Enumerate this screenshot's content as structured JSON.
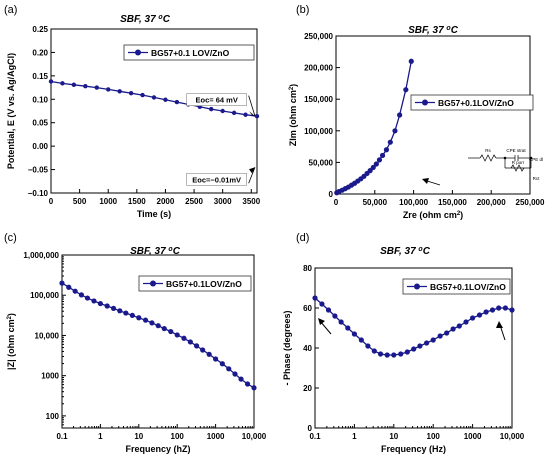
{
  "chart_data": [
    {
      "panel_label": "(a)",
      "type": "line",
      "title": "SBF, 37 oC",
      "xlabel": "Time (s)",
      "ylabel": "Potential, E (V vs. Ag/AgCl)",
      "xlim": [
        0,
        3600
      ],
      "ylim": [
        -0.1,
        0.25
      ],
      "x_scale": "linear",
      "y_scale": "linear",
      "x_ticks": [
        0,
        500,
        1000,
        1500,
        2000,
        2500,
        3000,
        3500
      ],
      "x_tick_labels": [
        "0",
        "500",
        "1000",
        "1500",
        "2000",
        "2500",
        "3000",
        "3500"
      ],
      "y_ticks": [
        -0.1,
        -0.05,
        0,
        0.05,
        0.1,
        0.15,
        0.2,
        0.25
      ],
      "y_tick_labels": [
        "−0.10",
        "−0.05",
        "0.00",
        "0.05",
        "0.10",
        "0.15",
        "0.20",
        "0.25"
      ],
      "legend": {
        "position": "top-right",
        "entries": [
          "BG57+0.1 LOV/ZnO"
        ]
      },
      "series": [
        {
          "name": "BG57+0.1 LOV/ZnO",
          "color": "#1a1a8c",
          "x": [
            0,
            200,
            400,
            600,
            800,
            1000,
            1200,
            1400,
            1600,
            1800,
            2000,
            2200,
            2400,
            2600,
            2800,
            3000,
            3200,
            3400,
            3600
          ],
          "y": [
            0.138,
            0.134,
            0.131,
            0.128,
            0.125,
            0.121,
            0.117,
            0.113,
            0.109,
            0.104,
            0.099,
            0.094,
            0.089,
            0.084,
            0.079,
            0.075,
            0.071,
            0.067,
            0.064
          ]
        }
      ],
      "annotations": [
        {
          "text": "Eoc= 64 mV",
          "color": "#1a1a8c",
          "x": 3000,
          "y": 0.095,
          "arrow_to": [
            3600,
            0.064
          ]
        },
        {
          "text": "Eoc=−0.01mV",
          "color": "#9b1111",
          "x": 3000,
          "y": -0.075,
          "arrow_to": [
            3600,
            -0.045
          ]
        }
      ]
    },
    {
      "panel_label": "(b)",
      "type": "scatter",
      "title": "SBF, 37 oC",
      "xlabel": "Zre (ohm cm2)",
      "ylabel": "ZIm (ohm cm2)",
      "xlim": [
        0,
        250000
      ],
      "ylim": [
        0,
        250000
      ],
      "x_scale": "linear",
      "y_scale": "linear",
      "x_ticks": [
        0,
        50000,
        100000,
        150000,
        200000,
        250000
      ],
      "x_tick_labels": [
        "0",
        "50,000",
        "100,000",
        "150,000",
        "200,000",
        "250,000"
      ],
      "y_ticks": [
        0,
        50000,
        100000,
        150000,
        200000,
        250000
      ],
      "y_tick_labels": [
        "0",
        "50,000",
        "100,000",
        "150,000",
        "200,000",
        "250,000"
      ],
      "legend": {
        "position": "middle-right",
        "entries": [
          "BG57+0.1LOV/ZnO"
        ]
      },
      "series": [
        {
          "name": "BG57+0.1LOV/ZnO",
          "color": "#1a1a8c",
          "x": [
            1000,
            4000,
            8000,
            12000,
            16000,
            20000,
            24000,
            28000,
            32000,
            36000,
            40000,
            44000,
            48000,
            52000,
            56000,
            60000,
            65000,
            70000,
            76000,
            82000,
            90000,
            97000
          ],
          "y": [
            2000,
            4000,
            6000,
            8500,
            11000,
            14000,
            17000,
            20500,
            24000,
            28000,
            32500,
            37000,
            42000,
            47500,
            54000,
            61000,
            70000,
            82000,
            100000,
            125000,
            165000,
            210000
          ]
        }
      ],
      "inset": {
        "type": "equivalent-circuit",
        "labels": [
          "Rs",
          "CPE strat",
          "R porr",
          "CPE dl",
          "Rct"
        ]
      }
    },
    {
      "panel_label": "(c)",
      "type": "line",
      "title": "SBF, 37 oC",
      "xlabel": "Frequency (hZ)",
      "ylabel": "|Z| (ohm cm2)",
      "xlim": [
        0.1,
        10000
      ],
      "ylim": [
        50,
        1000000
      ],
      "x_scale": "log",
      "y_scale": "log",
      "x_ticks": [
        0.1,
        1,
        10,
        100,
        1000,
        10000
      ],
      "x_tick_labels": [
        "0.1",
        "1",
        "10",
        "100",
        "1000",
        "10,000"
      ],
      "y_ticks": [
        100,
        1000,
        10000,
        100000,
        1000000
      ],
      "y_tick_labels": [
        "100",
        "1000",
        "10,000",
        "100,000",
        "1,000,000"
      ],
      "legend": {
        "position": "top-right",
        "entries": [
          "BG57+0.1LOV/ZnO"
        ]
      },
      "series": [
        {
          "name": "BG57+0.1LOV/ZnO",
          "color": "#1a1a8c",
          "x": [
            0.1,
            0.15,
            0.22,
            0.32,
            0.46,
            0.68,
            1,
            1.5,
            2.2,
            3.2,
            4.6,
            6.8,
            10,
            15,
            22,
            32,
            46,
            68,
            100,
            150,
            220,
            320,
            460,
            680,
            1000,
            1500,
            2200,
            3200,
            4600,
            6800,
            10000
          ],
          "y": [
            200000,
            158000,
            126000,
            102000,
            85000,
            72000,
            62000,
            54000,
            47000,
            41000,
            36000,
            31500,
            27500,
            24000,
            20500,
            17500,
            14800,
            12500,
            10300,
            8500,
            6900,
            5500,
            4350,
            3400,
            2600,
            1980,
            1480,
            1100,
            820,
            620,
            500
          ]
        }
      ]
    },
    {
      "panel_label": "(d)",
      "type": "line",
      "title": "SBF, 37 oC",
      "xlabel": "Frequency (Hz)",
      "ylabel": "- Phase (degrees)",
      "xlim": [
        0.1,
        10000
      ],
      "ylim": [
        0,
        80
      ],
      "x_scale": "log",
      "y_scale": "linear",
      "x_ticks": [
        0.1,
        1,
        10,
        100,
        1000,
        10000
      ],
      "x_tick_labels": [
        "0.1",
        "1",
        "10",
        "100",
        "1000",
        "10,000"
      ],
      "y_ticks": [
        0,
        20,
        40,
        60,
        80
      ],
      "y_tick_labels": [
        "0",
        "20",
        "40",
        "60",
        "80"
      ],
      "legend": {
        "position": "top-right",
        "entries": [
          "BG57+0.1LOV/ZnO"
        ]
      },
      "series": [
        {
          "name": "BG57+0.1LOV/ZnO",
          "color": "#1a1a8c",
          "x": [
            0.1,
            0.15,
            0.22,
            0.32,
            0.46,
            0.68,
            1,
            1.5,
            2.2,
            3.2,
            4.6,
            6.8,
            10,
            15,
            22,
            32,
            46,
            68,
            100,
            150,
            220,
            320,
            460,
            680,
            1000,
            1500,
            2200,
            3200,
            4600,
            6800,
            10000
          ],
          "y": [
            65,
            62,
            59,
            56,
            53,
            50,
            47,
            44,
            41,
            38.5,
            37,
            36.5,
            36.5,
            37,
            38,
            39.5,
            41,
            42.5,
            44,
            46,
            47.5,
            49.5,
            51,
            53,
            55,
            56.5,
            58,
            59,
            60,
            60,
            59
          ]
        }
      ]
    }
  ]
}
